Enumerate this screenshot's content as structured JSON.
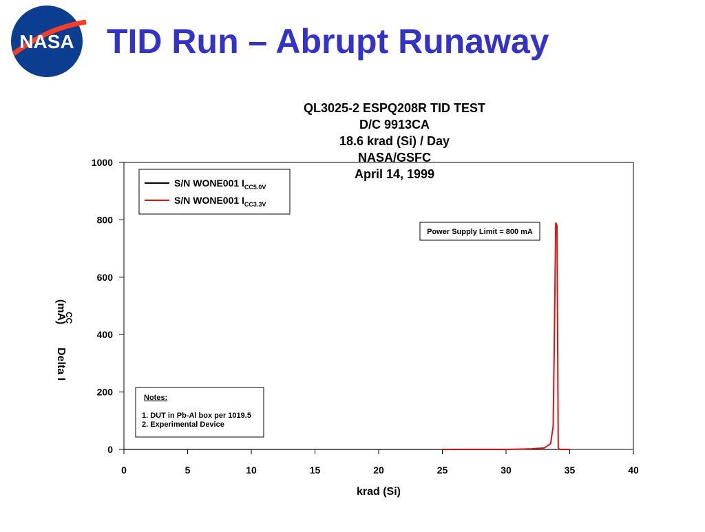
{
  "header": {
    "title": "TID Run – Abrupt Runaway",
    "logo_text": "NASA"
  },
  "chart_data": {
    "type": "line",
    "title_lines": [
      "QL3025-2 ESPQ208R TID TEST",
      "D/C 9913CA",
      "18.6 krad (Si) / Day",
      "NASA/GSFC",
      "April 14, 1999"
    ],
    "xlabel": "krad (Si)",
    "ylabel": {
      "text": "Delta I",
      "subscript": "CC",
      "unit": "(mA)"
    },
    "xlim": [
      0,
      40
    ],
    "xticks": [
      0,
      5,
      10,
      15,
      20,
      25,
      30,
      35,
      40
    ],
    "ylim": [
      0,
      1000
    ],
    "yticks": [
      0,
      200,
      400,
      600,
      800,
      1000
    ],
    "series": [
      {
        "name": "S/N WONE001 I",
        "name_subscript": "CC5.0V",
        "color": "#000000",
        "x": [
          0,
          5,
          10,
          15,
          20,
          25,
          30,
          33,
          34
        ],
        "values": [
          0,
          0,
          0,
          0,
          0,
          0,
          0,
          0,
          0
        ]
      },
      {
        "name": "S/N WONE001 I",
        "name_subscript": "CC3.3V",
        "color": "#dd1111",
        "x": [
          25,
          30,
          32,
          33,
          33.5,
          33.7,
          33.8,
          33.9,
          34.0,
          34.05,
          34.1,
          34.2,
          35
        ],
        "values": [
          0,
          0,
          2,
          5,
          20,
          80,
          400,
          790,
          780,
          400,
          5,
          0,
          0
        ]
      }
    ],
    "annotation": "Power Supply Limit = 800 mA",
    "notes": {
      "title": "Notes:",
      "lines": [
        "1. DUT in Pb-Al box per 1019.5",
        "2. Experimental Device"
      ]
    }
  }
}
